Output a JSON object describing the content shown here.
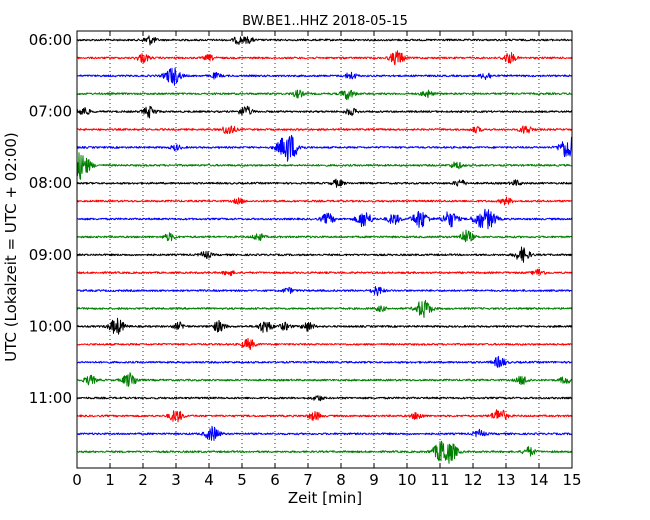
{
  "chart_data": {
    "type": "line",
    "title": "BW.BE1..HHZ 2018-05-15",
    "xlabel": "Zeit  [min]",
    "ylabel": "UTC (Lokalzeit = UTC + 02:00)",
    "xlim": [
      0,
      15
    ],
    "x_ticks": [
      "0",
      "1",
      "2",
      "3",
      "4",
      "5",
      "6",
      "7",
      "8",
      "9",
      "10",
      "11",
      "12",
      "13",
      "14",
      "15"
    ],
    "y_ticks": [
      "06:00",
      "07:00",
      "08:00",
      "09:00",
      "10:00",
      "11:00"
    ],
    "trace_start_minutes": [
      "06:00",
      "06:15",
      "06:30",
      "06:45",
      "07:00",
      "07:15",
      "07:30",
      "07:45",
      "08:00",
      "08:15",
      "08:30",
      "08:45",
      "09:00",
      "09:15",
      "09:30",
      "09:45",
      "10:00",
      "10:15",
      "10:30",
      "10:45",
      "11:00",
      "11:15",
      "11:30",
      "11:45"
    ],
    "series_colors": [
      "#000000",
      "#ff0000",
      "#0000ff",
      "#008000"
    ],
    "vertical_grid": true,
    "grid_style": "dotted",
    "events": [
      [
        0,
        2.2,
        0.5
      ],
      [
        0,
        4.9,
        0.4
      ],
      [
        0,
        5.2,
        0.3
      ],
      [
        1,
        2.0,
        0.5
      ],
      [
        1,
        4.0,
        0.3
      ],
      [
        1,
        9.7,
        0.8
      ],
      [
        1,
        13.1,
        0.6
      ],
      [
        2,
        2.9,
        1.0
      ],
      [
        2,
        4.2,
        0.3
      ],
      [
        2,
        8.3,
        0.4
      ],
      [
        2,
        12.4,
        0.4
      ],
      [
        3,
        6.7,
        0.4
      ],
      [
        3,
        8.2,
        0.6
      ],
      [
        3,
        10.6,
        0.4
      ],
      [
        4,
        0.2,
        0.5
      ],
      [
        4,
        2.2,
        0.6
      ],
      [
        4,
        5.1,
        0.6
      ],
      [
        4,
        8.3,
        0.4
      ],
      [
        5,
        4.6,
        0.6
      ],
      [
        5,
        12.1,
        0.3
      ],
      [
        5,
        13.6,
        0.5
      ],
      [
        6,
        6.4,
        1.6
      ],
      [
        6,
        14.9,
        1.3
      ],
      [
        6,
        3.0,
        0.3
      ],
      [
        7,
        0.1,
        1.5
      ],
      [
        7,
        11.5,
        0.4
      ],
      [
        8,
        7.9,
        0.4
      ],
      [
        8,
        11.6,
        0.4
      ],
      [
        8,
        13.3,
        0.3
      ],
      [
        9,
        4.9,
        0.3
      ],
      [
        9,
        13.0,
        0.4
      ],
      [
        10,
        7.6,
        0.6
      ],
      [
        10,
        8.7,
        0.9
      ],
      [
        10,
        9.6,
        0.6
      ],
      [
        10,
        10.4,
        1.0
      ],
      [
        10,
        11.3,
        0.9
      ],
      [
        10,
        12.2,
        0.8
      ],
      [
        10,
        12.5,
        0.9
      ],
      [
        11,
        2.8,
        0.4
      ],
      [
        11,
        5.5,
        0.4
      ],
      [
        11,
        11.8,
        0.7
      ],
      [
        12,
        3.9,
        0.4
      ],
      [
        12,
        13.5,
        0.8
      ],
      [
        13,
        4.6,
        0.3
      ],
      [
        13,
        14.0,
        0.4
      ],
      [
        14,
        6.4,
        0.3
      ],
      [
        14,
        9.1,
        0.5
      ],
      [
        15,
        10.5,
        1.0
      ],
      [
        15,
        9.2,
        0.3
      ],
      [
        16,
        1.2,
        0.9
      ],
      [
        16,
        3.1,
        0.4
      ],
      [
        16,
        4.3,
        0.6
      ],
      [
        16,
        5.7,
        0.7
      ],
      [
        16,
        6.3,
        0.4
      ],
      [
        16,
        7.0,
        0.5
      ],
      [
        17,
        5.2,
        0.6
      ],
      [
        18,
        12.8,
        0.6
      ],
      [
        19,
        0.4,
        0.5
      ],
      [
        19,
        1.6,
        0.8
      ],
      [
        19,
        13.5,
        0.5
      ],
      [
        19,
        14.8,
        0.4
      ],
      [
        20,
        7.3,
        0.3
      ],
      [
        21,
        3.0,
        0.7
      ],
      [
        21,
        7.2,
        0.5
      ],
      [
        21,
        10.3,
        0.4
      ],
      [
        21,
        12.8,
        0.8
      ],
      [
        22,
        4.1,
        0.8
      ],
      [
        22,
        12.2,
        0.4
      ],
      [
        23,
        11.1,
        1.4
      ],
      [
        23,
        11.4,
        0.5
      ],
      [
        23,
        13.7,
        0.5
      ]
    ]
  }
}
